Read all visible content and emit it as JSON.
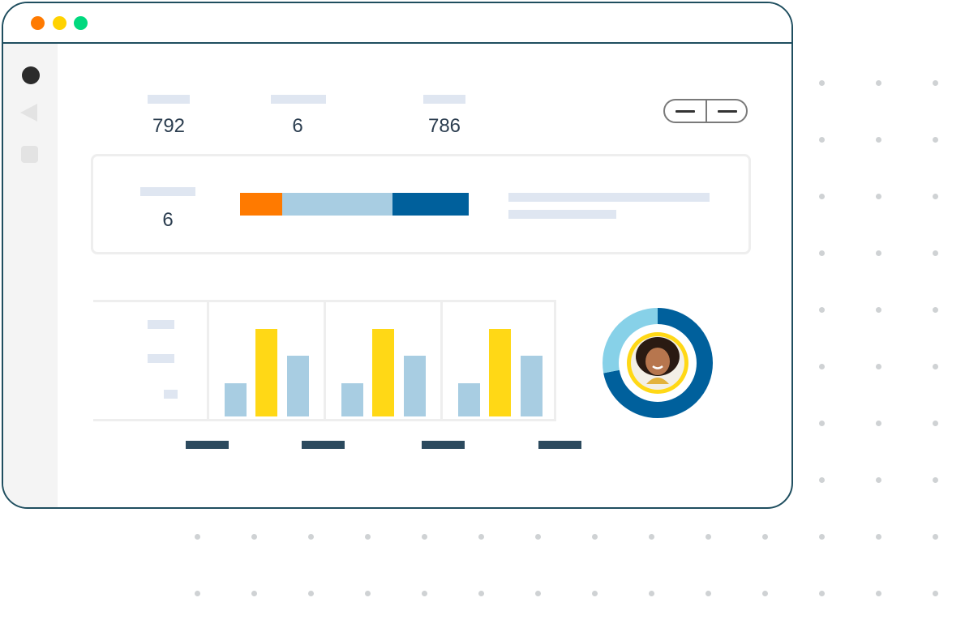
{
  "window": {
    "traffic_lights": [
      {
        "name": "close",
        "color": "#ff7a00"
      },
      {
        "name": "minimize",
        "color": "#ffd200"
      },
      {
        "name": "maximize",
        "color": "#00d97e"
      }
    ],
    "sidebar_icons": [
      "circle-icon",
      "back-triangle-icon",
      "square-icon"
    ]
  },
  "stats": {
    "stat1_value": "792",
    "stat2_value": "6",
    "stat3_value": "786"
  },
  "summary_card": {
    "value": "6",
    "segment_bar": {
      "segments": [
        {
          "fraction": 0.184,
          "color": "#ff7a00"
        },
        {
          "fraction": 0.482,
          "color": "#a8cde2"
        },
        {
          "fraction": 0.334,
          "color": "#00609c"
        }
      ]
    }
  },
  "chart_data": {
    "type": "bar",
    "groups": [
      {
        "values": [
          0.38,
          1.0,
          0.69
        ]
      },
      {
        "values": [
          0.38,
          1.0,
          0.69
        ]
      },
      {
        "values": [
          0.38,
          1.0,
          0.69
        ]
      }
    ],
    "bar_colors": [
      "#a8cde2",
      "#ffd816",
      "#a8cde2"
    ],
    "ylim": [
      0,
      1
    ]
  },
  "donut": {
    "fractions": [
      0.72,
      0.28
    ],
    "colors": [
      "#00609c",
      "#87d1e8"
    ],
    "avatar_ring_color": "#ffd816"
  }
}
